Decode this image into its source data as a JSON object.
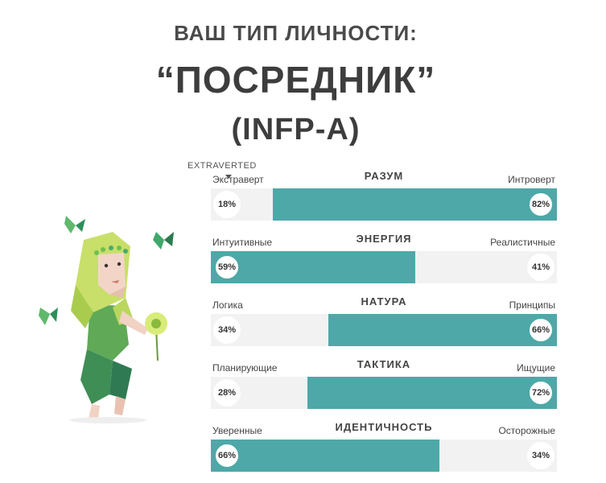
{
  "header": {
    "subtitle": "ВАШ ТИП ЛИЧНОСТИ:",
    "type_name": "“ПОСРЕДНИК”",
    "type_code": "(INFP-A)"
  },
  "tooltip": "EXTRAVERTED",
  "traits": [
    {
      "category": "РАЗУМ",
      "left_label": "Экстраверт",
      "right_label": "Интроверт",
      "left_pct": "18%",
      "right_pct": "82%",
      "left_value": 18,
      "right_value": 82,
      "dominant": "right"
    },
    {
      "category": "ЭНЕРГИЯ",
      "left_label": "Интуитивные",
      "right_label": "Реалистичные",
      "left_pct": "59%",
      "right_pct": "41%",
      "left_value": 59,
      "right_value": 41,
      "dominant": "left"
    },
    {
      "category": "НАТУРА",
      "left_label": "Логика",
      "right_label": "Принципы",
      "left_pct": "34%",
      "right_pct": "66%",
      "left_value": 34,
      "right_value": 66,
      "dominant": "right"
    },
    {
      "category": "ТАКТИКА",
      "left_label": "Планирующие",
      "right_label": "Ищущие",
      "left_pct": "28%",
      "right_pct": "72%",
      "left_value": 28,
      "right_value": 72,
      "dominant": "right"
    },
    {
      "category": "ИДЕНТИЧНОСТЬ",
      "left_label": "Уверенные",
      "right_label": "Осторожные",
      "left_pct": "66%",
      "right_pct": "34%",
      "left_value": 66,
      "right_value": 34,
      "dominant": "left"
    }
  ],
  "colors": {
    "accent": "#4ea8a8",
    "track": "#f2f2f2",
    "text": "#3d3d3d"
  },
  "illustration": "mediator-character-icon"
}
